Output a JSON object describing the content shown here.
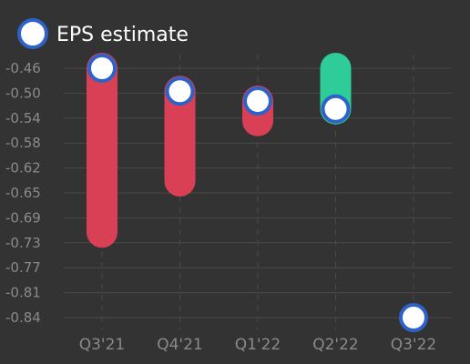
{
  "chart_data": {
    "type": "range-bar",
    "categories": [
      "Q3'21",
      "Q4'21",
      "Q1'22",
      "Q2'22",
      "Q3'22"
    ],
    "series": [
      {
        "name": "EPS estimate",
        "values": [
          -0.46,
          -0.495,
          -0.51,
          -0.522,
          -0.84
        ]
      },
      {
        "values": [
          -0.71,
          -0.632,
          -0.54,
          -0.46,
          null
        ]
      }
    ],
    "y_ticks": [
      "-0.46",
      "-0.50",
      "-0.54",
      "-0.58",
      "-0.62",
      "-0.65",
      "-0.69",
      "-0.73",
      "-0.77",
      "-0.81",
      "-0.84"
    ],
    "ylim": [
      -0.84,
      -0.46
    ],
    "legend_position": "top-left",
    "grid": {
      "horizontal": true,
      "vertical": "dashed"
    },
    "colors": {
      "background": "#333333",
      "miss": "#d93f55",
      "beat": "#2ecc98",
      "marker_fill": "#ffffff",
      "marker_stroke": "#2f62c9",
      "grid": "#4a4a4a",
      "tick_text": "#8a8a8a"
    }
  }
}
